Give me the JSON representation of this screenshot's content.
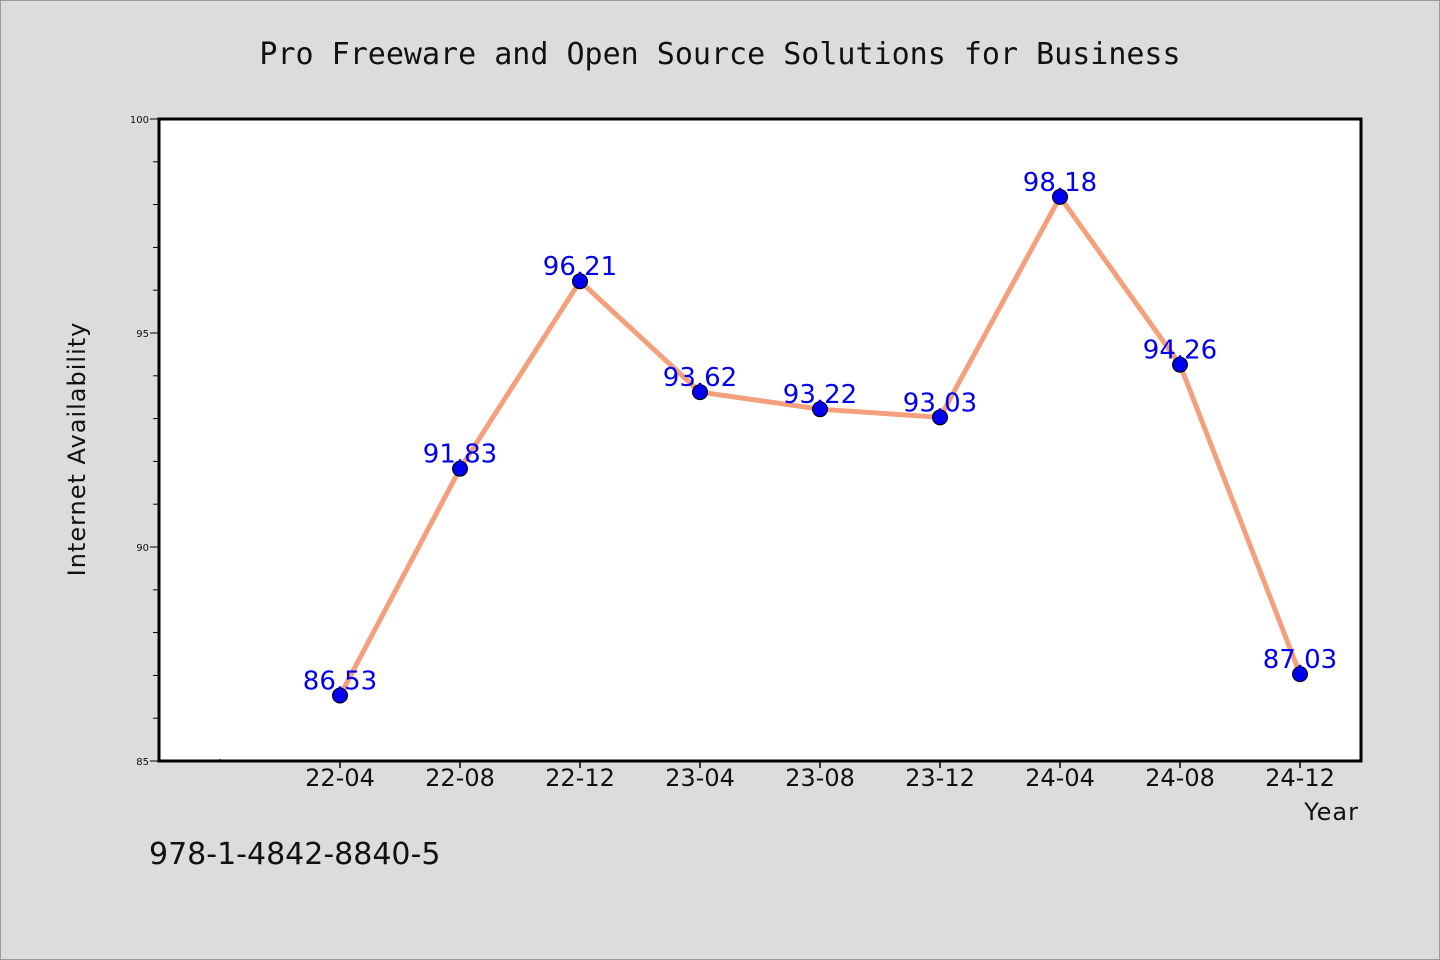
{
  "chart_data": {
    "type": "line",
    "title": "Pro Freeware and Open Source Solutions for Business",
    "xlabel": "Year",
    "ylabel": "Internet Availability",
    "categories": [
      "22-04",
      "22-08",
      "22-12",
      "23-04",
      "23-08",
      "23-12",
      "24-04",
      "24-08",
      "24-12"
    ],
    "series": [
      {
        "values": [
          86.53,
          91.83,
          96.21,
          93.62,
          93.22,
          93.03,
          98.18,
          94.26,
          87.03
        ],
        "data_labels": [
          "86.53",
          "91.83",
          "96.21",
          "93.62",
          "93.22",
          "93.03",
          "98.18",
          "94.26",
          "87.03"
        ],
        "line_color": "#f4a07c",
        "marker_color": "#0000ee"
      }
    ],
    "ylim": [
      85,
      100
    ],
    "yticks": [
      85,
      90,
      95,
      100
    ],
    "ytick_labels": [
      "85",
      "90",
      "95",
      "100"
    ],
    "grid": false,
    "legend": "none"
  },
  "footer_text": "978-1-4842-8840-5"
}
